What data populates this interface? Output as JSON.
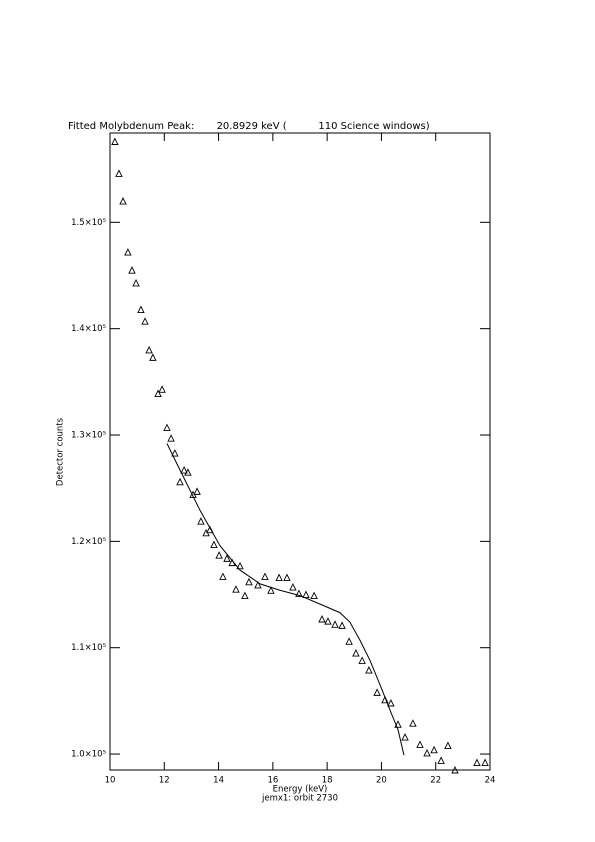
{
  "chart_data": {
    "type": "scatter",
    "title": "Fitted Molybdenum Peak:       20.8929 keV (          110 Science windows)",
    "x_label": "Energy (keV)",
    "subtitle": "jemx1: orbit 2730",
    "y_label": "Detector counts",
    "xlim": [
      10,
      24
    ],
    "xticks": [
      10,
      12,
      14,
      16,
      18,
      20,
      22,
      24
    ],
    "ylim": [
      98500,
      158400
    ],
    "yticks": [
      {
        "value": 100000,
        "label": "1.0×10⁵"
      },
      {
        "value": 110000,
        "label": "1.1×10⁵"
      },
      {
        "value": 120000,
        "label": "1.2×10⁵"
      },
      {
        "value": 130000,
        "label": "1.3×10⁵"
      },
      {
        "value": 140000,
        "label": "1.4×10⁵"
      },
      {
        "value": 150000,
        "label": "1.5×10⁵"
      }
    ],
    "series": [
      {
        "marker": "triangle",
        "color": "#000000",
        "x": [
          10.18,
          10.33,
          10.48,
          10.66,
          10.81,
          10.96,
          11.14,
          11.29,
          11.44,
          11.58,
          11.77,
          11.92,
          12.1,
          12.25,
          12.39,
          12.58,
          12.73,
          12.87,
          13.06,
          13.21,
          13.35,
          13.54,
          13.68,
          13.83,
          14.02,
          14.16,
          14.31,
          14.5,
          14.64,
          14.79,
          14.97,
          15.12,
          15.45,
          15.71,
          15.93,
          16.23,
          16.52,
          16.74,
          16.96,
          17.22,
          17.52,
          17.81,
          18.03,
          18.29,
          18.55,
          18.81,
          19.06,
          19.29,
          19.54,
          19.84,
          20.13,
          20.35,
          20.61,
          20.87,
          21.16,
          21.42,
          21.68,
          21.94,
          22.2,
          22.45,
          22.71,
          23.52,
          23.82
        ],
        "values": [
          157600,
          154600,
          152000,
          147200,
          145500,
          144300,
          141800,
          140700,
          138000,
          137300,
          133900,
          134300,
          130700,
          129700,
          128300,
          125600,
          126700,
          126500,
          124400,
          124700,
          121900,
          120800,
          121100,
          119700,
          118700,
          116700,
          118400,
          118000,
          115500,
          117700,
          114900,
          116200,
          115900,
          116700,
          115400,
          116600,
          116600,
          115700,
          115100,
          115000,
          114900,
          112700,
          112500,
          112200,
          112100,
          110600,
          109500,
          108800,
          107900,
          105800,
          105100,
          104800,
          102800,
          101600,
          102900,
          100900,
          100100,
          100400,
          99400,
          100800,
          98500,
          99200,
          99200
        ]
      },
      {
        "marker": "line",
        "color": "#000000",
        "x": [
          12.1,
          12.58,
          13.32,
          14.05,
          14.79,
          15.53,
          16.26,
          17.0,
          17.74,
          18.47,
          18.84,
          19.21,
          19.58,
          19.95,
          20.32,
          20.61,
          20.83
        ],
        "values": [
          129200,
          126700,
          122900,
          119600,
          117300,
          116000,
          115400,
          114900,
          114100,
          113300,
          112400,
          110700,
          108800,
          106500,
          104100,
          102300,
          99900
        ]
      }
    ]
  }
}
